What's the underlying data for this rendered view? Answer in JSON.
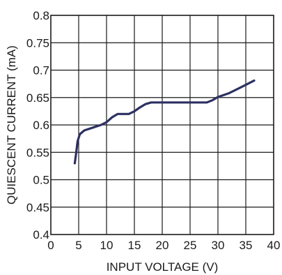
{
  "chart_data": {
    "type": "line",
    "title": "",
    "xlabel": "INPUT VOLTAGE (V)",
    "ylabel": "QUIESCENT CURRENT (mA)",
    "xlim": [
      0,
      40
    ],
    "ylim": [
      0.4,
      0.8
    ],
    "x_ticks": [
      0,
      5,
      10,
      15,
      20,
      25,
      30,
      35,
      40
    ],
    "x_tick_labels": [
      "0",
      "5",
      "10",
      "15",
      "20",
      "25",
      "30",
      "35",
      "40"
    ],
    "y_ticks": [
      0.4,
      0.45,
      0.5,
      0.55,
      0.6,
      0.65,
      0.7,
      0.75,
      0.8
    ],
    "y_tick_labels": [
      "0.4",
      "0.45",
      "0.5",
      "0.55",
      "0.6",
      "0.65",
      "0.7",
      "0.75",
      "0.8"
    ],
    "grid": true,
    "series": [
      {
        "color": "#2d3061",
        "x": [
          4.3,
          4.5,
          4.8,
          5.2,
          6,
          7.5,
          9,
          10,
          11,
          12,
          13,
          14,
          15,
          16,
          17,
          18,
          20,
          22,
          25,
          28,
          29,
          30,
          32,
          34,
          36.5
        ],
        "y": [
          0.53,
          0.545,
          0.57,
          0.583,
          0.59,
          0.595,
          0.6,
          0.605,
          0.614,
          0.62,
          0.62,
          0.62,
          0.625,
          0.632,
          0.638,
          0.641,
          0.641,
          0.641,
          0.641,
          0.641,
          0.645,
          0.651,
          0.658,
          0.668,
          0.681
        ]
      }
    ]
  }
}
